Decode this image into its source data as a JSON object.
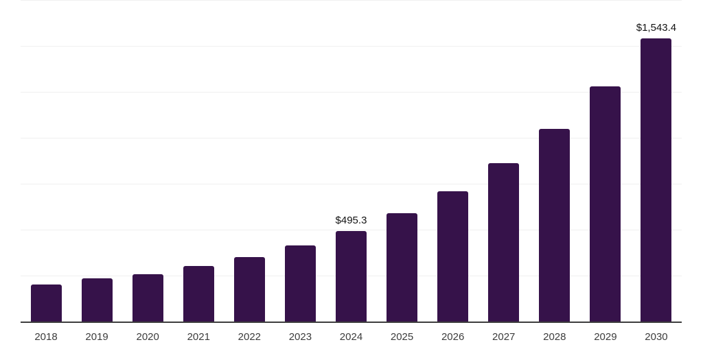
{
  "chart_data": {
    "type": "bar",
    "title": "",
    "xlabel": "",
    "ylabel": "",
    "legend_position": "none",
    "grid": "horizontal",
    "ylim": [
      0,
      1750
    ],
    "gridline_step": 250,
    "categories": [
      "2018",
      "2019",
      "2020",
      "2021",
      "2022",
      "2023",
      "2024",
      "2025",
      "2026",
      "2027",
      "2028",
      "2029",
      "2030"
    ],
    "values": [
      205.4,
      239.0,
      260.3,
      306.2,
      355.9,
      417.1,
      495.3,
      593.7,
      714.4,
      865.2,
      1051.9,
      1282.0,
      1543.4
    ],
    "data_labels": [
      "",
      "",
      "",
      "",
      "",
      "",
      "$495.3",
      "",
      "",
      "",
      "",
      "",
      "$1,543.4"
    ],
    "colors": {
      "bar": "#36124a",
      "axis_line": "#3d3d3d",
      "gridline": "#f0f0f0",
      "tick_label": "#3c3c3c",
      "data_label": "#121212",
      "background": "#ffffff"
    }
  }
}
